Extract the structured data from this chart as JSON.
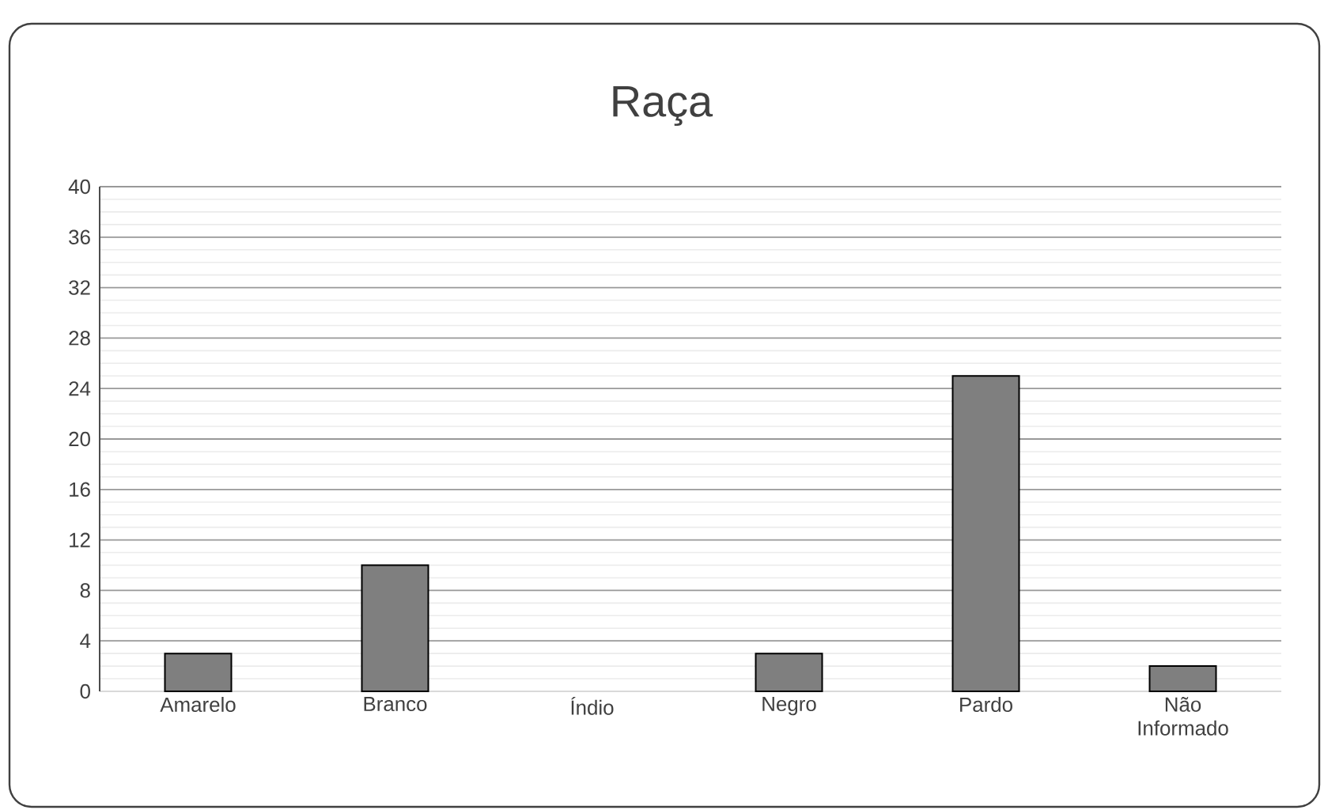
{
  "chart_data": {
    "type": "bar",
    "title": "Raça",
    "categories": [
      "Amarelo",
      "Branco",
      "Índio",
      "Negro",
      "Pardo",
      "Não Informado"
    ],
    "values": [
      3,
      10,
      0,
      3,
      25,
      2
    ],
    "color": "#7f7f7f",
    "ylim": [
      0,
      40
    ],
    "yticks": [
      0,
      4,
      8,
      12,
      16,
      20,
      24,
      28,
      32,
      36,
      40
    ],
    "grid": "y"
  }
}
